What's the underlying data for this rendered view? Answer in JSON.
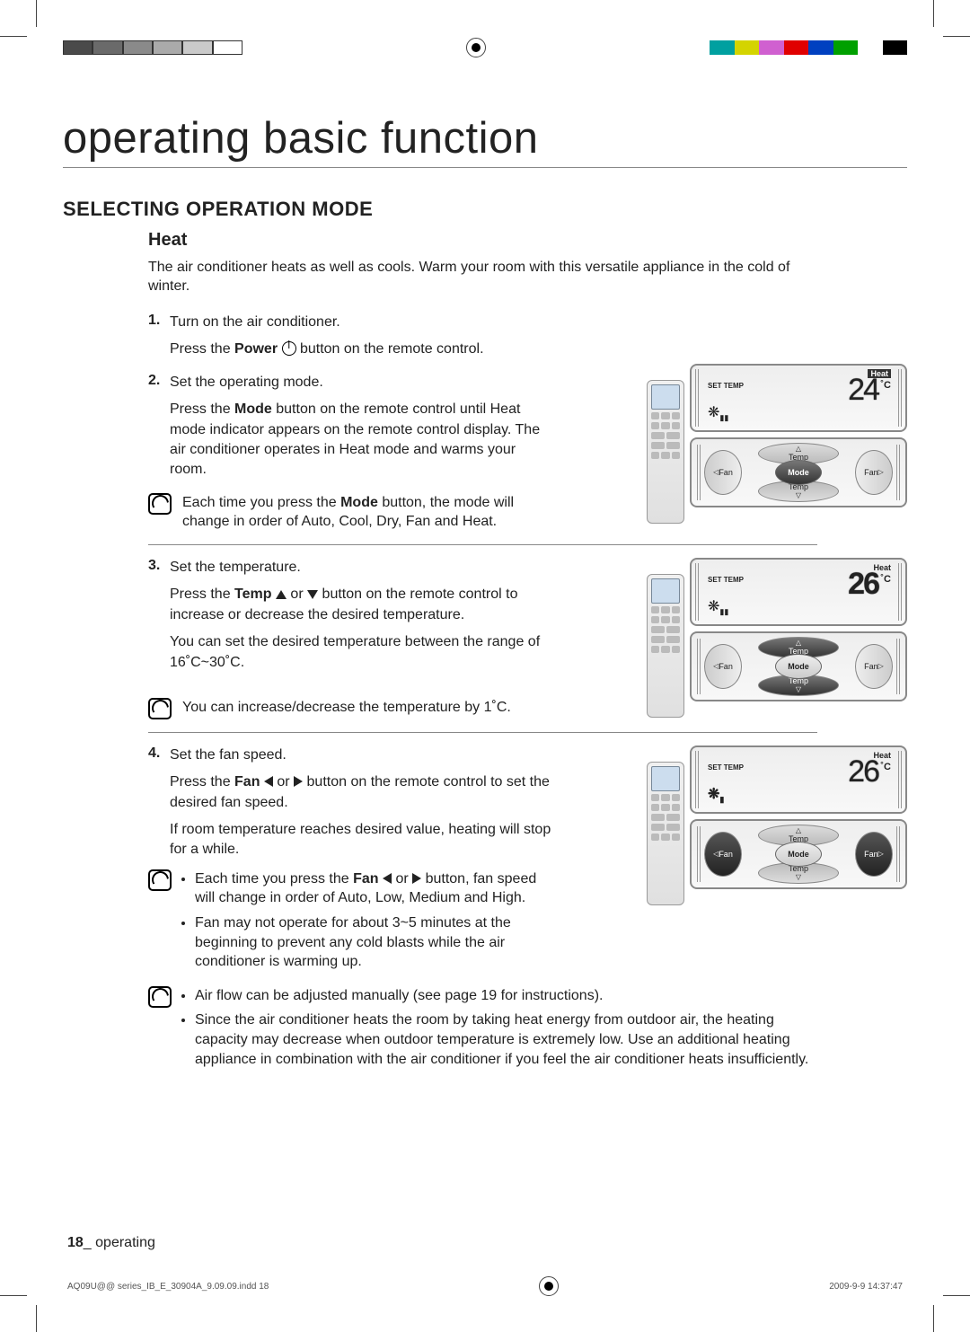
{
  "colorbar_left": [
    "#4a4a4a",
    "#6a6a6a",
    "#8a8a8a",
    "#aaaaaa",
    "#cacaca",
    "#ffffff"
  ],
  "colorbar_right": [
    "#00a0a0",
    "#d4d400",
    "#d060d0",
    "#e00000",
    "#0040c0",
    "#00a000",
    "#ffffff",
    "#000000"
  ],
  "title": "operating basic function",
  "section": "SELECTING OPERATION MODE",
  "subhead": "Heat",
  "intro": "The air conditioner heats as well as cools. Warm your room with this versatile appliance in the cold of winter.",
  "steps": {
    "s1": {
      "n": "1.",
      "head": "Turn on the air conditioner.",
      "body_a": "Press the ",
      "bold": "Power",
      "body_b": " button on the remote control."
    },
    "s2": {
      "n": "2.",
      "head": "Set the operating mode.",
      "body_a": "Press the ",
      "bold": "Mode",
      "body_b": " button on the remote control until Heat mode indicator appears on the remote control display. The air conditioner operates in Heat mode and warms your room."
    },
    "s3": {
      "n": "3.",
      "head": "Set the temperature.",
      "body_a": "Press the ",
      "bold": "Temp",
      "body_b": " button on the remote control to increase or decrease the desired temperature.",
      "body_c": "You can set the desired temperature between the range of 16˚C~30˚C."
    },
    "s4": {
      "n": "4.",
      "head": "Set the fan speed.",
      "body_a": "Press the ",
      "bold": "Fan",
      "body_b": " button on the remote control to set the desired fan speed.",
      "body_c": "If room temperature reaches desired value, heating will stop for a while."
    }
  },
  "notes": {
    "n1_a": "Each time you press the ",
    "n1_bold": "Mode",
    "n1_b": " button, the mode will change in order of Auto, Cool, Dry, Fan and Heat.",
    "n2": "You can increase/decrease the temperature by 1˚C.",
    "n3a_a": "Each time you press the ",
    "n3a_bold": "Fan",
    "n3a_b": " button, fan speed will change in order of Auto, Low, Medium and High.",
    "n3b": "Fan may not operate for about 3~5 minutes at the beginning to prevent any cold blasts while the air conditioner is warming up.",
    "n4a": "Air flow can be adjusted manually (see page 19 for instructions).",
    "n4b": "Since the air conditioner heats the room by taking heat energy from outdoor air, the heating capacity may decrease when outdoor temperature is extremely low. Use an additional heating appliance in combination with the air conditioner if you feel the air conditioner heats insufficiently."
  },
  "figures": {
    "f1": {
      "mode_label": "Heat",
      "set_label": "SET TEMP",
      "temp": "24",
      "deg": "˚C",
      "highlight": "mode"
    },
    "f2": {
      "mode_label": "Heat",
      "set_label": "SET TEMP",
      "temp": "26",
      "deg": "˚C",
      "highlight": "temp"
    },
    "f3": {
      "mode_label": "Heat",
      "set_label": "SET TEMP",
      "temp": "26",
      "deg": "˚C",
      "highlight": "fan"
    }
  },
  "ctrl": {
    "mode": "Mode",
    "temp": "Temp",
    "fan_l": "Fan",
    "fan_r": "Fan"
  },
  "footer_page": "18",
  "footer_sep": "_ ",
  "footer_section": "operating",
  "print_file": "AQ09U@@ series_IB_E_30904A_9.09.09.indd   18",
  "print_stamp": "2009-9-9   14:37:47"
}
